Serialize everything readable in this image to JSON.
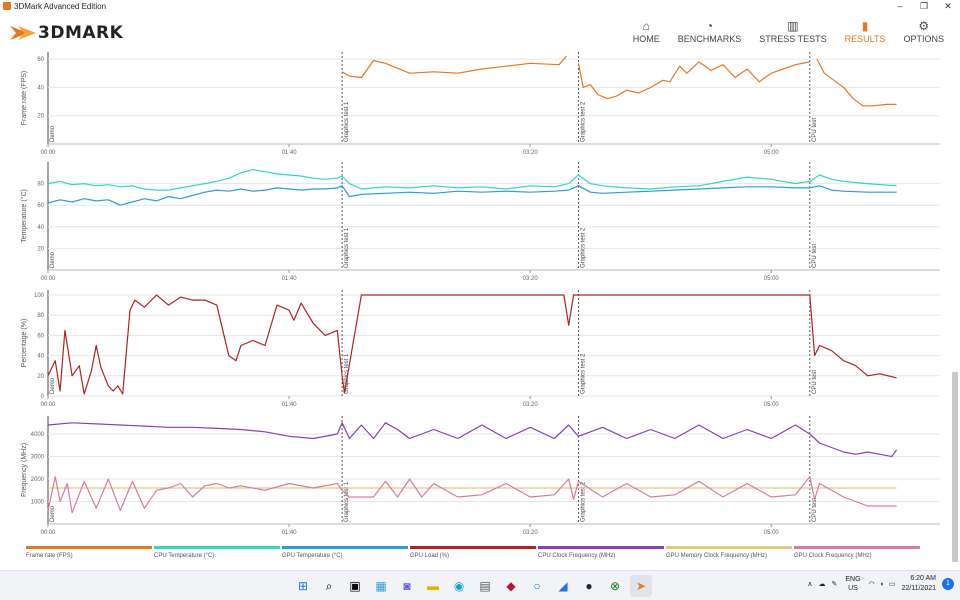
{
  "window": {
    "title": "3DMark Advanced Edition"
  },
  "brand": {
    "name": "3DMARK",
    "accent": "#e87722"
  },
  "nav": [
    {
      "label": "HOME",
      "icon": "home-icon"
    },
    {
      "label": "BENCHMARKS",
      "icon": "gauge-icon"
    },
    {
      "label": "STRESS TESTS",
      "icon": "bars-icon"
    },
    {
      "label": "RESULTS",
      "icon": "results-icon",
      "active": true
    },
    {
      "label": "OPTIONS",
      "icon": "gear-icon"
    }
  ],
  "markers": [
    "Demo",
    "Graphics test 1",
    "Graphics test 2",
    "CPU test"
  ],
  "x_ticks": [
    "00:00",
    "01:40",
    "03:20",
    "05:00"
  ],
  "chart_data": [
    {
      "type": "line",
      "ylabel": "Frame rate (FPS)",
      "yticks": [
        20,
        40,
        60
      ],
      "ylim": [
        0,
        65
      ],
      "series": [
        {
          "name": "Frame rate (FPS)",
          "color": "#e87722",
          "segments": [
            {
              "x": [
                122,
                125,
                130,
                135,
                140,
                150,
                160,
                170,
                180,
                190,
                200,
                212,
                215
              ],
              "y": [
                51,
                48,
                47,
                59,
                57,
                50,
                51,
                50,
                53,
                55,
                57,
                56,
                62
              ]
            },
            {
              "x": [
                220,
                222,
                225,
                228,
                232,
                236,
                240,
                245,
                250,
                255,
                258,
                262,
                265,
                270,
                275,
                280,
                285,
                290,
                295,
                300,
                305,
                310,
                316
              ],
              "y": [
                57,
                40,
                42,
                35,
                32,
                34,
                38,
                36,
                40,
                45,
                44,
                55,
                50,
                58,
                52,
                56,
                47,
                53,
                44,
                50,
                53,
                56,
                58
              ]
            },
            {
              "x": [
                319,
                322,
                326,
                330,
                334,
                338,
                342,
                348,
                352
              ],
              "y": [
                60,
                50,
                45,
                40,
                32,
                27,
                27,
                28,
                28
              ]
            }
          ]
        }
      ]
    },
    {
      "type": "line",
      "ylabel": "Temperature (°C)",
      "yticks": [
        20,
        40,
        60,
        80
      ],
      "ylim": [
        0,
        100
      ],
      "series": [
        {
          "name": "CPU Temperature (°C)",
          "color": "#2fd8c3",
          "x": [
            0,
            5,
            10,
            15,
            20,
            25,
            30,
            35,
            40,
            45,
            50,
            55,
            60,
            65,
            70,
            75,
            80,
            85,
            90,
            95,
            100,
            105,
            110,
            115,
            120,
            122,
            125,
            130,
            140,
            150,
            160,
            170,
            180,
            190,
            200,
            210,
            216,
            220,
            225,
            230,
            240,
            250,
            260,
            270,
            280,
            290,
            300,
            310,
            316,
            320,
            325,
            330,
            340,
            352
          ],
          "y": [
            80,
            82,
            79,
            80,
            78,
            79,
            77,
            78,
            75,
            74,
            74,
            76,
            78,
            80,
            82,
            85,
            90,
            93,
            91,
            89,
            88,
            87,
            85,
            84,
            85,
            87,
            80,
            75,
            77,
            76,
            78,
            76,
            77,
            75,
            78,
            77,
            80,
            88,
            80,
            78,
            76,
            75,
            77,
            78,
            82,
            86,
            84,
            80,
            82,
            88,
            84,
            82,
            80,
            78
          ]
        },
        {
          "name": "GPU Temperature (°C)",
          "color": "#2a9ed8",
          "x": [
            0,
            5,
            10,
            15,
            20,
            25,
            30,
            35,
            40,
            45,
            50,
            55,
            60,
            65,
            70,
            75,
            80,
            85,
            90,
            95,
            100,
            105,
            110,
            115,
            120,
            122,
            125,
            130,
            140,
            150,
            160,
            170,
            180,
            190,
            200,
            210,
            216,
            220,
            225,
            230,
            240,
            250,
            260,
            270,
            280,
            290,
            300,
            310,
            316,
            320,
            325,
            330,
            340,
            352
          ],
          "y": [
            62,
            65,
            63,
            66,
            64,
            65,
            60,
            63,
            66,
            64,
            68,
            66,
            69,
            72,
            74,
            73,
            75,
            73,
            74,
            76,
            75,
            74,
            75,
            75,
            76,
            78,
            68,
            70,
            71,
            72,
            71,
            73,
            72,
            73,
            72,
            73,
            74,
            78,
            72,
            71,
            72,
            73,
            74,
            75,
            76,
            77,
            77,
            76,
            76,
            78,
            74,
            73,
            72,
            72
          ]
        }
      ]
    },
    {
      "type": "line",
      "ylabel": "Percentage (%)",
      "yticks": [
        0,
        20,
        40,
        60,
        80,
        100
      ],
      "ylim": [
        0,
        105
      ],
      "series": [
        {
          "name": "GPU Load (%)",
          "color": "#b22222",
          "x": [
            0,
            3,
            5,
            7,
            10,
            13,
            15,
            18,
            20,
            22,
            25,
            27,
            29,
            31,
            34,
            36,
            40,
            45,
            50,
            55,
            60,
            65,
            70,
            72,
            75,
            78,
            80,
            85,
            90,
            95,
            100,
            102,
            105,
            110,
            115,
            120,
            122,
            123,
            130,
            140,
            150,
            160,
            170,
            180,
            190,
            200,
            210,
            214,
            216,
            218,
            220,
            230,
            240,
            250,
            260,
            270,
            280,
            290,
            300,
            310,
            316,
            318,
            320,
            325,
            330,
            335,
            340,
            345,
            352
          ],
          "y": [
            20,
            35,
            5,
            65,
            20,
            30,
            2,
            25,
            50,
            28,
            10,
            5,
            10,
            2,
            85,
            95,
            88,
            100,
            90,
            98,
            95,
            95,
            90,
            70,
            40,
            35,
            50,
            55,
            50,
            90,
            85,
            75,
            92,
            72,
            60,
            65,
            20,
            3,
            100,
            100,
            100,
            100,
            100,
            100,
            100,
            100,
            100,
            100,
            70,
            100,
            100,
            100,
            100,
            100,
            100,
            100,
            100,
            100,
            100,
            100,
            100,
            40,
            50,
            45,
            35,
            30,
            20,
            22,
            18
          ]
        }
      ]
    },
    {
      "type": "line",
      "ylabel": "Frequency (MHz)",
      "yticks": [
        1000,
        2000,
        3000,
        4000
      ],
      "ylim": [
        0,
        4800
      ],
      "series": [
        {
          "name": "CPU Clock Frequency (MHz)",
          "color": "#8a3fb3",
          "x": [
            0,
            10,
            20,
            30,
            40,
            50,
            60,
            70,
            80,
            90,
            100,
            110,
            120,
            122,
            125,
            130,
            135,
            140,
            145,
            150,
            160,
            170,
            180,
            190,
            200,
            210,
            216,
            220,
            230,
            240,
            250,
            260,
            270,
            280,
            290,
            300,
            310,
            316,
            320,
            325,
            330,
            335,
            340,
            345,
            350,
            352
          ],
          "y": [
            4400,
            4500,
            4450,
            4400,
            4350,
            4300,
            4300,
            4250,
            4200,
            4100,
            3900,
            3800,
            4000,
            4500,
            3800,
            4400,
            3800,
            4500,
            4200,
            3800,
            4200,
            3800,
            4400,
            3800,
            4300,
            3800,
            4400,
            3900,
            4300,
            3800,
            4200,
            3800,
            4400,
            3800,
            4200,
            3800,
            4400,
            4000,
            3600,
            3400,
            3200,
            3100,
            3200,
            3100,
            3000,
            3300
          ]
        },
        {
          "name": "GPU Memory Clock Frequency (MHz)",
          "color": "#e8c87a",
          "x": [
            0,
            352
          ],
          "y": [
            1600,
            1600
          ]
        },
        {
          "name": "GPU Clock Frequency (MHz)",
          "color": "#d87aa8",
          "x": [
            0,
            3,
            5,
            8,
            10,
            15,
            20,
            25,
            30,
            35,
            40,
            45,
            50,
            55,
            60,
            65,
            70,
            75,
            80,
            90,
            100,
            110,
            120,
            122,
            125,
            135,
            140,
            145,
            150,
            155,
            160,
            170,
            180,
            190,
            200,
            210,
            216,
            218,
            220,
            230,
            240,
            250,
            260,
            270,
            280,
            290,
            300,
            310,
            316,
            318,
            320,
            330,
            340,
            352
          ],
          "y": [
            600,
            2100,
            1000,
            1800,
            500,
            1900,
            700,
            2000,
            600,
            1900,
            700,
            1500,
            1600,
            1800,
            1200,
            1700,
            1800,
            1600,
            1700,
            1500,
            1800,
            1600,
            1800,
            1500,
            1200,
            1200,
            1900,
            1200,
            2000,
            1200,
            1800,
            1200,
            1300,
            1800,
            1200,
            1300,
            2000,
            1100,
            1900,
            1200,
            1800,
            1200,
            1300,
            1900,
            1200,
            1800,
            1200,
            1300,
            2100,
            1100,
            1800,
            1200,
            800,
            800
          ]
        }
      ]
    }
  ],
  "legend": [
    {
      "label": "Frame rate (FPS)",
      "color": "#e87722"
    },
    {
      "label": "CPU Temperature (°C)",
      "color": "#2fd8c3"
    },
    {
      "label": "GPU Temperature (°C)",
      "color": "#2a9ed8"
    },
    {
      "label": "GPU Load (%)",
      "color": "#b22222"
    },
    {
      "label": "CPU Clock Frequency (MHz)",
      "color": "#8a3fb3"
    },
    {
      "label": "GPU Memory Clock Frequency (MHz)",
      "color": "#e8c87a"
    },
    {
      "label": "GPU Clock Frequency (MHz)",
      "color": "#d87aa8"
    }
  ],
  "taskbar": {
    "language": "ENG",
    "region": "US",
    "time": "6:20 AM",
    "date": "22/11/2021",
    "notifications": "1"
  }
}
